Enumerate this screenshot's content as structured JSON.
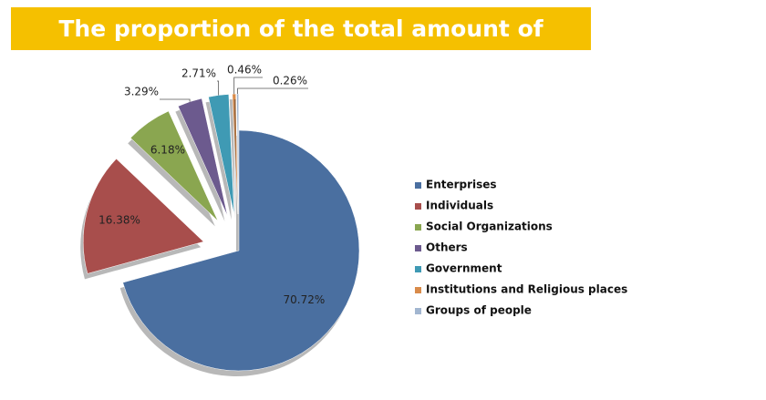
{
  "chart_data": {
    "type": "pie",
    "title": "The proportion of the total amount of donations",
    "categories": [
      "Enterprises",
      "Individuals",
      "Social Organizations",
      "Others",
      "Government",
      "Institutions and Religious places",
      "Groups of people"
    ],
    "values": [
      70.72,
      16.38,
      6.18,
      3.29,
      2.71,
      0.46,
      0.26
    ],
    "value_labels": [
      "70.72%",
      "16.38%",
      "6.18%",
      "3.29%",
      "2.71%",
      "0.46%",
      "0.26%"
    ],
    "colors": [
      "#4a6fa0",
      "#a84e4c",
      "#8aa650",
      "#6c5a8e",
      "#3f9ab4",
      "#d98b4a",
      "#a2b6d0"
    ],
    "legend": "right"
  }
}
